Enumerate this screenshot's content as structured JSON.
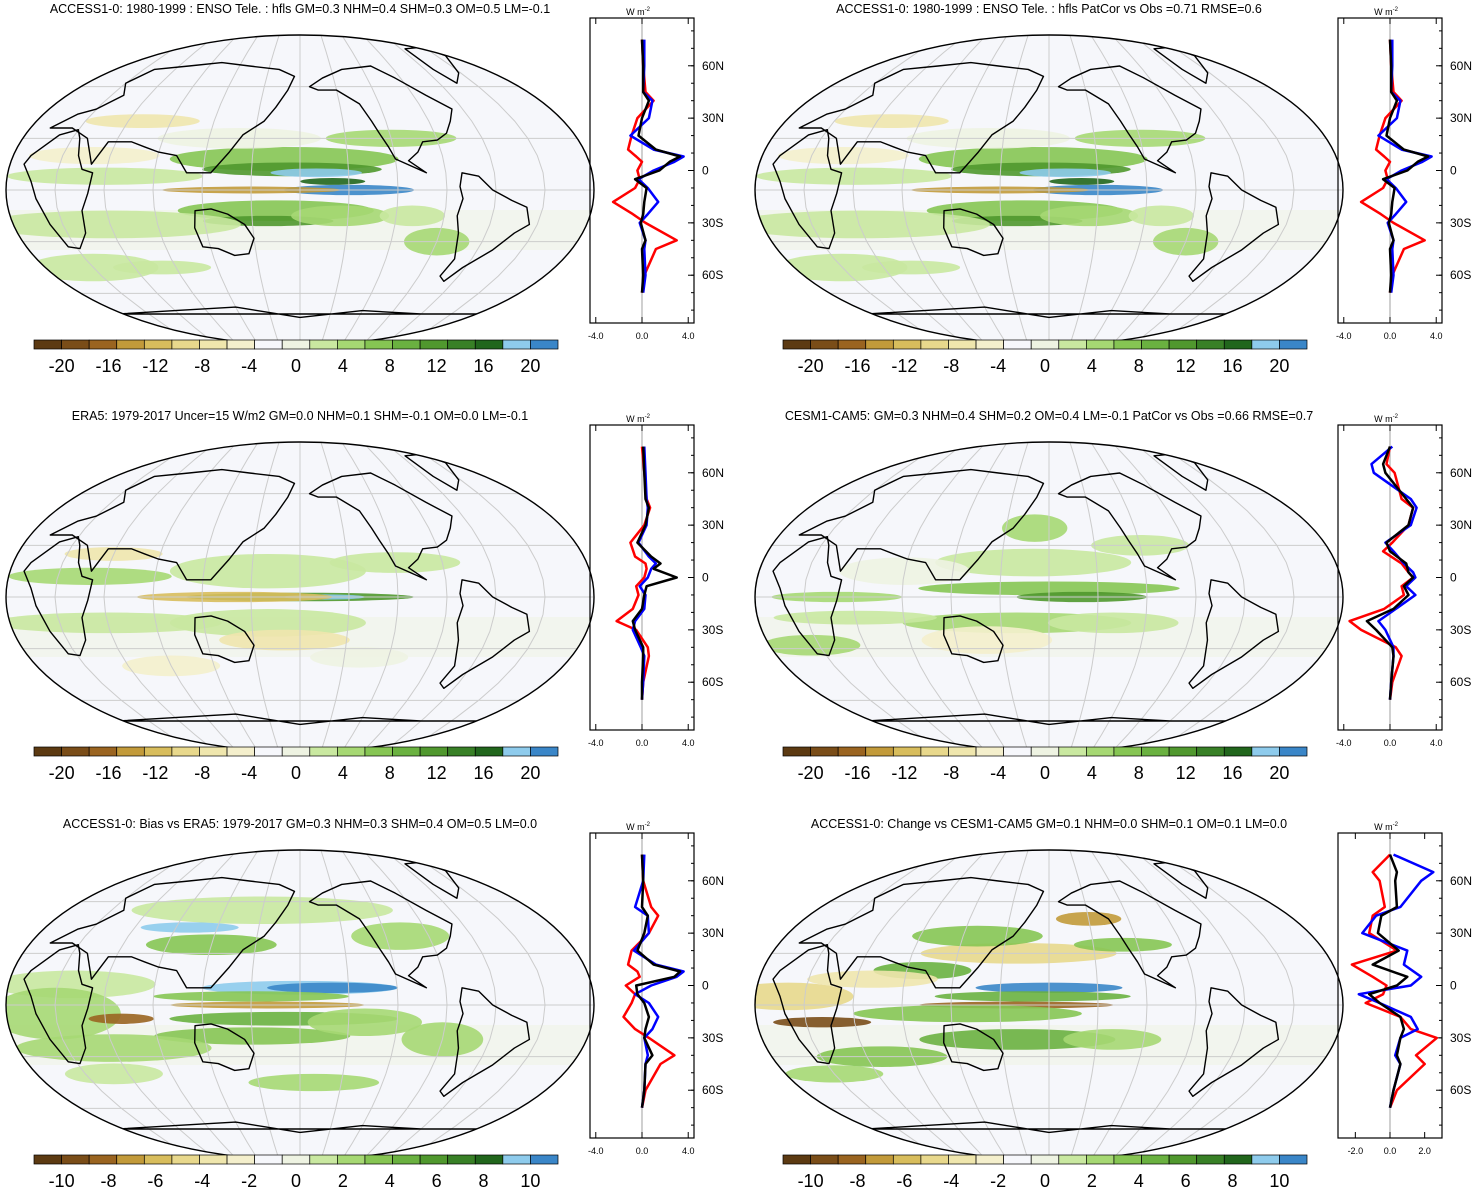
{
  "colors": {
    "levels": [
      "#5c3a12",
      "#7a4d18",
      "#9a6420",
      "#c29a3a",
      "#d8bd5c",
      "#e8d88c",
      "#efe6ad",
      "#f4efcc",
      "#f6f7fb",
      "#eef3e2",
      "#c9e8a0",
      "#a6d873",
      "#86c553",
      "#6ab140",
      "#50982e",
      "#388026",
      "#21661c",
      "#8ecbec",
      "#3a86c8"
    ],
    "ocean": "#f6f7fb",
    "land_line": "#000000",
    "line_red": "#ff0000",
    "line_blue": "#0000ff",
    "line_black": "#000000"
  },
  "unit_label": "W m",
  "unit_sup": "-2",
  "lat_labels": [
    "60N",
    "30N",
    "0",
    "30S",
    "60S"
  ],
  "panels": [
    {
      "title": "ACCESS1-0: 1980-1999 : ENSO Tele. : hfls GM=0.3 NHM=0.4 SHM=0.3 OM=0.5 LM=-0.1",
      "colorbar_labels": [
        "-20",
        "-16",
        "-12",
        "-8",
        "-4",
        "0",
        "4",
        "8",
        "12",
        "16",
        "20"
      ],
      "zonal_xticks": [
        "-4.0",
        "0.0",
        "4.0"
      ]
    },
    {
      "title": "ACCESS1-0: 1980-1999 : ENSO Tele. : hfls PatCor vs Obs =0.71 RMSE=0.6",
      "colorbar_labels": [
        "-20",
        "-16",
        "-12",
        "-8",
        "-4",
        "0",
        "4",
        "8",
        "12",
        "16",
        "20"
      ],
      "zonal_xticks": [
        "-4.0",
        "0.0",
        "4.0"
      ]
    },
    {
      "title": "ERA5: 1979-2017 Uncer=15 W/m2 GM=0.0 NHM=0.1 SHM=-0.1 OM=0.0 LM=-0.1",
      "colorbar_labels": [
        "-20",
        "-16",
        "-12",
        "-8",
        "-4",
        "0",
        "4",
        "8",
        "12",
        "16",
        "20"
      ],
      "zonal_xticks": [
        "-4.0",
        "0.0",
        "4.0"
      ]
    },
    {
      "title": "CESM1-CAM5: GM=0.3 NHM=0.4 SHM=0.2 OM=0.4 LM=-0.1 PatCor vs Obs =0.66 RMSE=0.7",
      "colorbar_labels": [
        "-20",
        "-16",
        "-12",
        "-8",
        "-4",
        "0",
        "4",
        "8",
        "12",
        "16",
        "20"
      ],
      "zonal_xticks": [
        "-4.0",
        "0.0",
        "4.0"
      ]
    },
    {
      "title": "ACCESS1-0: Bias vs ERA5: 1979-2017 GM=0.3 NHM=0.3 SHM=0.4 OM=0.5 LM=0.0",
      "colorbar_labels": [
        "-10",
        "-8",
        "-6",
        "-4",
        "-2",
        "0",
        "2",
        "4",
        "6",
        "8",
        "10"
      ],
      "zonal_xticks": [
        "-4.0",
        "0.0",
        "4.0"
      ]
    },
    {
      "title": "ACCESS1-0: Change vs CESM1-CAM5 GM=0.1 NHM=0.0 SHM=0.1 OM=0.1 LM=0.0",
      "colorbar_labels": [
        "-10",
        "-8",
        "-6",
        "-4",
        "-2",
        "0",
        "2",
        "4",
        "6",
        "8",
        "10"
      ],
      "zonal_xticks": [
        "-2.0",
        "0.0",
        "2.0"
      ]
    }
  ],
  "chart_data": [
    {
      "type": "heatmap",
      "title": "ACCESS1-0: 1980-1999 : ENSO Tele. : hfls GM=0.3 NHM=0.4 SHM=0.3 OM=0.5 LM=-0.1",
      "colorbar_range": [
        -20,
        20
      ],
      "zonal_mean": {
        "lat": [
          75,
          60,
          45,
          40,
          30,
          20,
          12,
          8,
          5,
          0,
          -5,
          -10,
          -18,
          -25,
          -30,
          -40,
          -45,
          -60,
          -70
        ],
        "red": [
          0,
          0.1,
          0.3,
          1.0,
          -0.4,
          -0.9,
          -1.2,
          -0.5,
          0,
          -0.4,
          -0.2,
          -0.6,
          -2.5,
          -0.8,
          0.3,
          3.0,
          1.2,
          0.2,
          0
        ],
        "blue": [
          0.2,
          0.2,
          0.1,
          0.9,
          0.6,
          -1.0,
          1.0,
          3.6,
          2.8,
          1.0,
          -0.3,
          0.5,
          1.4,
          0.5,
          -0.2,
          0.3,
          0.2,
          0.3,
          0.1
        ],
        "black": [
          0,
          0.1,
          0.1,
          0.6,
          0,
          -0.3,
          1.2,
          3.3,
          2.4,
          1.5,
          -0.6,
          0.4,
          0.2,
          0.1,
          -0.1,
          0.3,
          0,
          0.1,
          0
        ]
      }
    },
    {
      "type": "heatmap",
      "title": "ACCESS1-0: 1980-1999 : ENSO Tele. : hfls PatCor vs Obs =0.71 RMSE=0.6",
      "colorbar_range": [
        -20,
        20
      ],
      "zonal_mean": {
        "lat": [
          75,
          60,
          45,
          40,
          30,
          20,
          12,
          8,
          5,
          0,
          -5,
          -10,
          -18,
          -25,
          -30,
          -40,
          -45,
          -60,
          -70
        ],
        "red": [
          0,
          0.1,
          0.3,
          1.0,
          -0.4,
          -0.9,
          -1.2,
          -0.5,
          0,
          -0.4,
          -0.2,
          -0.6,
          -2.5,
          -0.8,
          0.3,
          3.0,
          1.2,
          0.2,
          0
        ],
        "blue": [
          0.2,
          0.2,
          0.1,
          0.9,
          0.6,
          -1.0,
          1.0,
          3.6,
          2.8,
          1.0,
          -0.3,
          0.5,
          1.4,
          0.5,
          -0.2,
          0.3,
          0.2,
          0.3,
          0.1
        ],
        "black": [
          0,
          0.1,
          0.1,
          0.6,
          0,
          -0.3,
          1.2,
          3.3,
          2.4,
          1.5,
          -0.6,
          0.4,
          0.2,
          0.1,
          -0.1,
          0.3,
          0,
          0.1,
          0
        ]
      }
    },
    {
      "type": "heatmap",
      "title": "ERA5: 1979-2017 Uncer=15 W/m2 GM=0.0 NHM=0.1 SHM=-0.1 OM=0.0 LM=-0.1",
      "colorbar_range": [
        -20,
        20
      ],
      "zonal_mean": {
        "lat": [
          75,
          60,
          45,
          40,
          30,
          20,
          12,
          8,
          5,
          0,
          -5,
          -10,
          -18,
          -25,
          -30,
          -40,
          -45,
          -60,
          -70
        ],
        "red": [
          0,
          0.2,
          0.4,
          0.7,
          0.2,
          -1.0,
          -0.6,
          0.3,
          0.4,
          0.2,
          -0.5,
          -0.3,
          -0.8,
          -2.2,
          -0.5,
          0.5,
          0.6,
          0.1,
          0
        ],
        "blue": [
          0.2,
          0.3,
          0.4,
          0.5,
          0.4,
          -0.3,
          0.6,
          1.2,
          0.8,
          0.5,
          -0.2,
          0.3,
          0.2,
          -0.6,
          -0.8,
          -0.1,
          0.2,
          0.1,
          0
        ],
        "black": [
          0.1,
          0.2,
          0.3,
          0.6,
          0.3,
          -0.4,
          0.8,
          1.6,
          1.0,
          3.0,
          0.4,
          0.2,
          0,
          -0.8,
          -0.6,
          0.1,
          0.1,
          0,
          0
        ]
      }
    },
    {
      "type": "heatmap",
      "title": "CESM1-CAM5: GM=0.3 NHM=0.4 SHM=0.2 OM=0.4 LM=-0.1 PatCor vs Obs =0.66 RMSE=0.7",
      "colorbar_range": [
        -20,
        20
      ],
      "zonal_mean": {
        "lat": [
          75,
          65,
          60,
          45,
          40,
          30,
          20,
          15,
          8,
          3,
          0,
          -5,
          -10,
          -18,
          -25,
          -30,
          -40,
          -45,
          -60,
          -70
        ],
        "red": [
          0,
          -0.3,
          0.4,
          1.0,
          2.0,
          1.6,
          0.2,
          -0.6,
          1.0,
          1.6,
          2.0,
          1.0,
          1.2,
          -0.5,
          -3.5,
          -2.5,
          0.5,
          1.0,
          0.2,
          0
        ],
        "blue": [
          0.2,
          -1.6,
          -1.4,
          1.8,
          2.3,
          1.8,
          -0.4,
          0.3,
          1.2,
          2.0,
          2.2,
          1.4,
          2.2,
          0.5,
          -1.0,
          -0.4,
          0.3,
          0.3,
          0.1,
          0
        ],
        "black": [
          0,
          -0.6,
          -0.4,
          1.4,
          2.0,
          1.6,
          -0.3,
          0,
          1.4,
          1.6,
          2.0,
          1.2,
          1.6,
          0.3,
          -2.0,
          -1.2,
          0.2,
          0.3,
          0.1,
          0
        ]
      }
    },
    {
      "type": "heatmap",
      "title": "ACCESS1-0: Bias vs ERA5: 1979-2017 GM=0.3 NHM=0.3 SHM=0.4 OM=0.5 LM=0.0",
      "colorbar_range": [
        -10,
        10
      ],
      "zonal_mean": {
        "lat": [
          75,
          60,
          45,
          40,
          30,
          20,
          12,
          8,
          5,
          0,
          -5,
          -10,
          -18,
          -25,
          -30,
          -40,
          -45,
          -60,
          -70
        ],
        "red": [
          0,
          0.1,
          0.8,
          1.4,
          0.6,
          -0.9,
          -1.2,
          -0.4,
          -0.2,
          -1.4,
          -0.6,
          -0.9,
          -1.6,
          -0.6,
          0.6,
          2.8,
          1.6,
          0.3,
          0
        ],
        "blue": [
          0.2,
          0.1,
          -0.6,
          0.5,
          0.6,
          -0.7,
          1.2,
          3.6,
          3.0,
          0.8,
          -0.6,
          0.6,
          1.4,
          0.9,
          0.2,
          0.5,
          0.3,
          0.2,
          0
        ],
        "black": [
          0,
          0.1,
          0,
          0.5,
          0.2,
          -0.4,
          1.0,
          3.3,
          2.8,
          -0.5,
          -0.4,
          0.2,
          0.6,
          0.3,
          0.2,
          0.9,
          0.3,
          0.2,
          0
        ]
      }
    },
    {
      "type": "heatmap",
      "title": "ACCESS1-0: Change vs CESM1-CAM5 GM=0.1 NHM=0.0 SHM=0.1 OM=0.1 LM=0.0",
      "colorbar_range": [
        -10,
        10
      ],
      "zonal_mean": {
        "lat": [
          75,
          65,
          60,
          45,
          40,
          30,
          20,
          12,
          5,
          0,
          -5,
          -10,
          -18,
          -25,
          -30,
          -40,
          -45,
          -60,
          -70
        ],
        "red": [
          0,
          -1.0,
          -0.6,
          -0.3,
          -1.0,
          -1.2,
          0.4,
          -2.2,
          -1.0,
          -0.2,
          -0.4,
          -1.4,
          0.6,
          1.2,
          2.7,
          1.5,
          2.0,
          0.4,
          0
        ],
        "blue": [
          0.2,
          2.5,
          1.8,
          0.6,
          -0.8,
          -1.6,
          1.0,
          0.8,
          1.8,
          1.2,
          -1.8,
          -0.6,
          1.2,
          1.6,
          0.6,
          0.3,
          0.6,
          0.2,
          0
        ],
        "black": [
          0,
          0.4,
          0.3,
          0.4,
          -0.5,
          -0.7,
          0.5,
          -1.0,
          1.0,
          0.4,
          -1.2,
          -0.6,
          0.6,
          0.8,
          0.6,
          0.4,
          0.6,
          0.2,
          0
        ]
      }
    }
  ]
}
